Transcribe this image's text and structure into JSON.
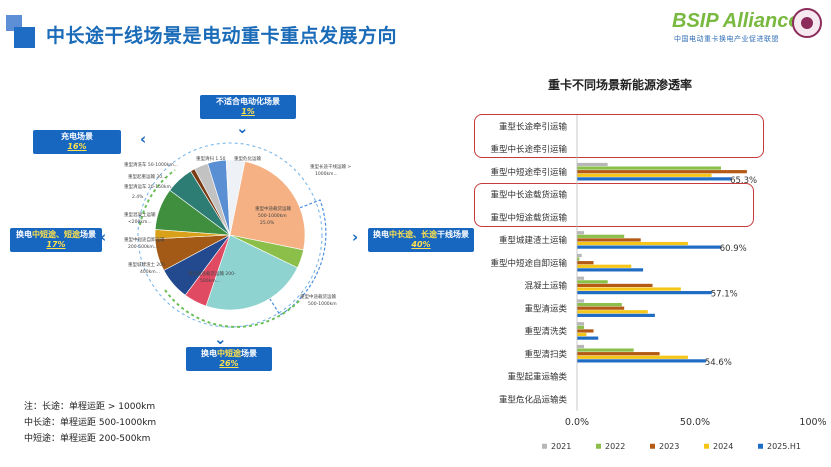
{
  "header": {
    "title": "中长途干线场景是电动重卡重点发展方向"
  },
  "logo": {
    "main": "BSIP Alliance",
    "sub": "中国电动重卡换电产业促进联盟"
  },
  "scenarios": {
    "unsuitable": {
      "label": "不适合电动化场景",
      "pct": "1%"
    },
    "charging": {
      "label": "充电场景",
      "pct": "16%"
    },
    "swap_short": {
      "pre": "换电",
      "hl": "中短途、短途",
      "post": "场景",
      "pct": "17%"
    },
    "swap_long": {
      "pre": "换电",
      "hl": "中长途、长途",
      "post": "干线场景",
      "pct": "40%"
    },
    "swap_mid": {
      "pre": "换电",
      "hl": "中短途",
      "post": "场景",
      "pct": "26%"
    }
  },
  "pie_labels": {
    "l1": "重型清洗车 50-1000km...",
    "l2": "重型起重运输 30...",
    "l3": "重型清运车 20-150km",
    "l4": "重型清运车 20-150km...",
    "l5": "2.4%",
    "l6": "重型混凝土运输",
    "l7": "<200km...",
    "l8": "重型中短途自卸运输",
    "l9": "200-500km...",
    "l10": "重型城建渣土 200",
    "l11": "400km...",
    "l12": "重型短途载货运输 200-",
    "l13": "500km...",
    "l14": "重型中途载货运输",
    "l15": "500-1000km",
    "l16": "重型长途干线运输 >",
    "l17": "1000km...",
    "l18": "重型危化运输",
    "l19": "重型清扫 1.50",
    "l20": "重型中途载货运输",
    "l21": "500-1000km",
    "l22": "25.0%"
  },
  "notes": [
    "注：长途：单程运距 > 1000km",
    "中长途：单程运距 500-1000km",
    "中短途：单程运距 200-500km"
  ],
  "chart_data": {
    "type": "bar",
    "orientation": "horizontal",
    "title": "重卡不同场景新能源渗透率",
    "categories": [
      "重型长途牵引运输",
      "重型中长途牵引运输",
      "重型中短途牵引运输",
      "重型中长途载货运输",
      "重型中短途载货运输",
      "重型城建渣土运输",
      "重型中短途自卸运输",
      "混凝土运输",
      "重型清运类",
      "重型清洗类",
      "重型清扫类",
      "重型起重运输类",
      "重型危化品运输类"
    ],
    "series": [
      {
        "name": "2021",
        "color": "#b7b7b7",
        "values": [
          0,
          0,
          13,
          0,
          0,
          3,
          2,
          3,
          3,
          3,
          3,
          0,
          0
        ]
      },
      {
        "name": "2022",
        "color": "#8bbf4a",
        "values": [
          0,
          0,
          61,
          0,
          0,
          20,
          1,
          13,
          19,
          3,
          24,
          0,
          0
        ]
      },
      {
        "name": "2023",
        "color": "#b45a14",
        "values": [
          0,
          0,
          72,
          0,
          0,
          27,
          7,
          32,
          20,
          7,
          35,
          0,
          0
        ]
      },
      {
        "name": "2024",
        "color": "#f5c518",
        "values": [
          0,
          0,
          57,
          0,
          0,
          47,
          23,
          44,
          30,
          4,
          47,
          0,
          0
        ]
      },
      {
        "name": "2025.H1",
        "color": "#1f6cc4",
        "values": [
          0,
          0,
          65.3,
          0,
          0,
          60.9,
          28,
          57.1,
          33,
          9,
          54.6,
          0,
          0
        ]
      }
    ],
    "data_labels": [
      {
        "category": "重型中短途牵引运输",
        "text": "65.3%"
      },
      {
        "category": "重型城建渣土运输",
        "text": "60.9%"
      },
      {
        "category": "混凝土运输",
        "text": "57.1%"
      },
      {
        "category": "重型清扫类",
        "text": "54.6%"
      }
    ],
    "xlim": [
      0,
      100
    ],
    "xticks": [
      "0.0%",
      "50.0%",
      "100%"
    ],
    "legend_position": "bottom",
    "highlight_groups": [
      [
        "重型长途牵引运输",
        "重型中长途牵引运输"
      ],
      [
        "重型中长途载货运输",
        "重型中短途载货运输"
      ]
    ]
  }
}
